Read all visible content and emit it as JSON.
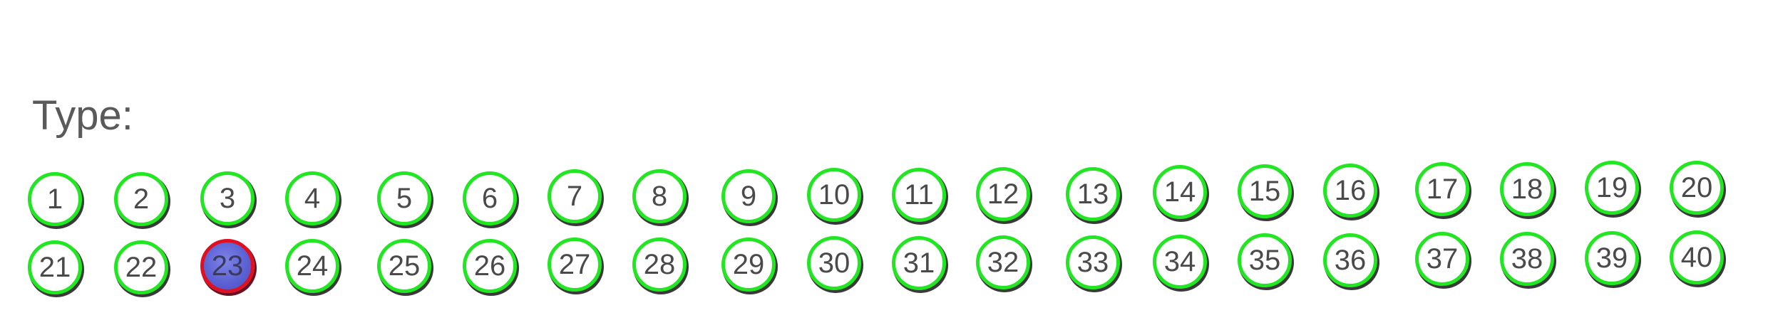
{
  "form": {
    "type_label": "Type:",
    "selected_value": "23"
  },
  "colors": {
    "bubble_outline": "#22e622",
    "selected_outline": "#e01020",
    "selected_fill": "#5a5fd2",
    "label_text": "#5a5a5a"
  },
  "bubbles": {
    "row1": [
      "1",
      "2",
      "3",
      "4",
      "5",
      "6",
      "7",
      "8",
      "9",
      "10",
      "11",
      "12",
      "13",
      "14",
      "15",
      "16",
      "17",
      "18",
      "19",
      "20"
    ],
    "row2": [
      "21",
      "22",
      "23",
      "24",
      "25",
      "26",
      "27",
      "28",
      "29",
      "30",
      "31",
      "32",
      "33",
      "34",
      "35",
      "36",
      "37",
      "38",
      "39",
      "40"
    ]
  }
}
